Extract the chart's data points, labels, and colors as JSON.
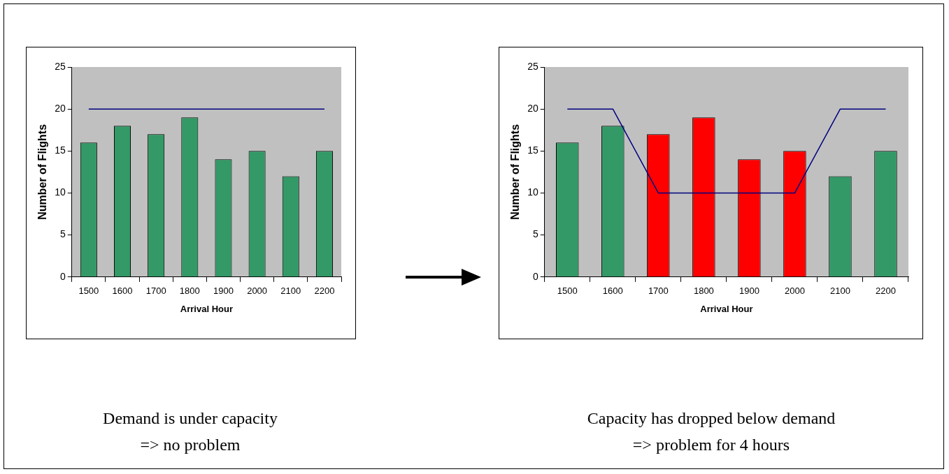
{
  "chart_data": [
    {
      "type": "bar",
      "xlabel": "Arrival Hour",
      "ylabel": "Number of Flights",
      "categories": [
        "1500",
        "1600",
        "1700",
        "1800",
        "1900",
        "2000",
        "2100",
        "2200"
      ],
      "ylim": [
        0,
        25
      ],
      "yticks": [
        0,
        5,
        10,
        15,
        20,
        25
      ],
      "grid": false,
      "legend": false,
      "series": [
        {
          "colors": [
            "#339966",
            "#339966",
            "#339966",
            "#339966",
            "#339966",
            "#339966",
            "#339966",
            "#339966"
          ],
          "values": [
            16,
            18,
            17,
            19,
            14,
            15,
            12,
            15
          ]
        },
        {
          "type": "line",
          "color": "#000080",
          "values": [
            20,
            20,
            20,
            20,
            20,
            20,
            20,
            20
          ]
        }
      ],
      "annotations": [
        "Demand is under capacity",
        "=> no problem"
      ]
    },
    {
      "type": "bar",
      "xlabel": "Arrival Hour",
      "ylabel": "Number of Flights",
      "categories": [
        "1500",
        "1600",
        "1700",
        "1800",
        "1900",
        "2000",
        "2100",
        "2200"
      ],
      "ylim": [
        0,
        25
      ],
      "yticks": [
        0,
        5,
        10,
        15,
        20,
        25
      ],
      "grid": false,
      "legend": false,
      "series": [
        {
          "colors": [
            "#339966",
            "#339966",
            "#ff0000",
            "#ff0000",
            "#ff0000",
            "#ff0000",
            "#339966",
            "#339966"
          ],
          "values": [
            16,
            18,
            17,
            19,
            14,
            15,
            12,
            15
          ]
        },
        {
          "type": "line",
          "color": "#000080",
          "values": [
            20,
            20,
            10,
            10,
            10,
            10,
            20,
            20
          ]
        }
      ],
      "annotations": [
        "Capacity has dropped below demand",
        "=> problem for 4 hours"
      ]
    }
  ]
}
